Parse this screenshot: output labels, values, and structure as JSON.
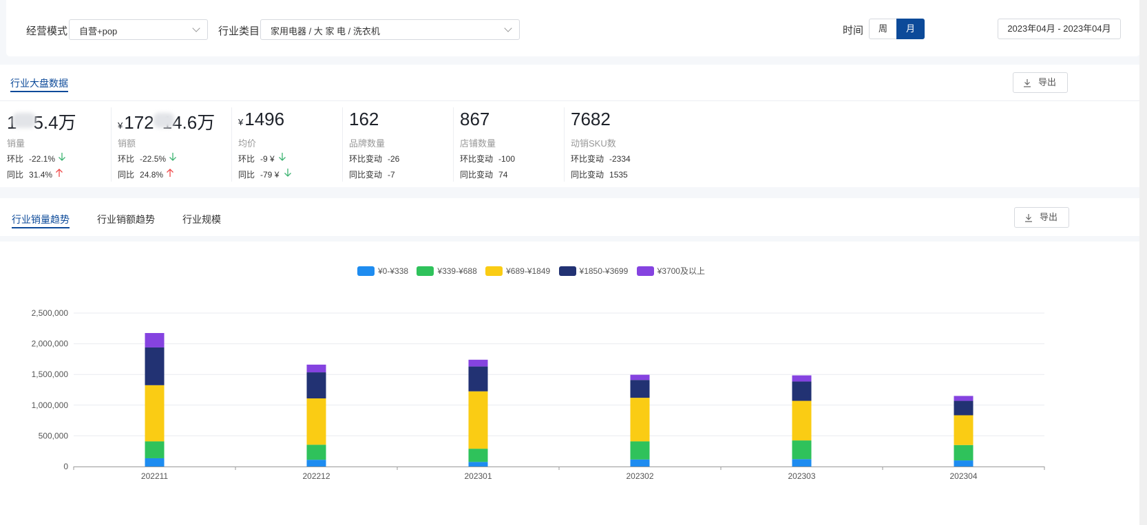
{
  "filters": {
    "mode_label": "经营模式",
    "mode_value": "自营+pop",
    "category_label": "行业类目",
    "category_value": "家用电器 / 大 家 电 / 洗衣机",
    "time_label": "时间",
    "time_options": [
      "周",
      "月"
    ],
    "time_selected": "月",
    "date_range": "2023年04月 - 2023年04月"
  },
  "overview": {
    "tab_label": "行业大盘数据",
    "export_label": "导出",
    "kpis": [
      {
        "value_suffix": "5.4万",
        "name": "销量",
        "rows": [
          {
            "label": "环比",
            "value": "-22.1%",
            "trend": "down"
          },
          {
            "label": "同比",
            "value": "31.4%",
            "trend": "up"
          }
        ]
      },
      {
        "currency": "¥",
        "value_prefix": "172",
        "value_suffix": "14.6万",
        "name": "销额",
        "rows": [
          {
            "label": "环比",
            "value": "-22.5%",
            "trend": "down"
          },
          {
            "label": "同比",
            "value": "24.8%",
            "trend": "up"
          }
        ]
      },
      {
        "currency": "¥",
        "value": "1496",
        "name": "均价",
        "rows": [
          {
            "label": "环比",
            "value": "-9 ¥",
            "trend": "down"
          },
          {
            "label": "同比",
            "value": "-79 ¥",
            "trend": "down"
          }
        ]
      },
      {
        "value": "162",
        "name": "品牌数量",
        "rows": [
          {
            "label": "环比变动",
            "value": "-26"
          },
          {
            "label": "同比变动",
            "value": "-7"
          }
        ]
      },
      {
        "value": "867",
        "name": "店铺数量",
        "rows": [
          {
            "label": "环比变动",
            "value": "-100"
          },
          {
            "label": "同比变动",
            "value": "74"
          }
        ]
      },
      {
        "value": "7682",
        "name": "动销SKU数",
        "rows": [
          {
            "label": "环比变动",
            "value": "-2334"
          },
          {
            "label": "同比变动",
            "value": "1535"
          }
        ]
      }
    ],
    "colors": {
      "down": "#3cb371",
      "up": "#f04848"
    }
  },
  "trend_tabs": {
    "tabs": [
      "行业销量趋势",
      "行业销额趋势",
      "行业规模"
    ],
    "active": "行业销量趋势",
    "export_label": "导出"
  },
  "chart_data": {
    "type": "bar",
    "stacked": true,
    "categories": [
      "202211",
      "202212",
      "202301",
      "202302",
      "202303",
      "202304"
    ],
    "series": [
      {
        "name": "¥0-¥338",
        "color": "#1e8cf0",
        "values": [
          135000,
          110000,
          75000,
          115000,
          120000,
          100000
        ]
      },
      {
        "name": "¥339-¥688",
        "color": "#2fc25b",
        "values": [
          275000,
          245000,
          215000,
          295000,
          305000,
          250000
        ]
      },
      {
        "name": "¥689-¥1849",
        "color": "#facc14",
        "values": [
          915000,
          755000,
          935000,
          710000,
          645000,
          485000
        ]
      },
      {
        "name": "¥1850-¥3699",
        "color": "#223273",
        "values": [
          615000,
          425000,
          405000,
          290000,
          315000,
          235000
        ]
      },
      {
        "name": "¥3700及以上",
        "color": "#8543e0",
        "values": [
          235000,
          125000,
          110000,
          85000,
          100000,
          80000
        ]
      }
    ],
    "ylim": [
      0,
      2500000
    ],
    "yticks": [
      "2,500,000",
      "2,000,000",
      "1,500,000",
      "1,000,000",
      "500,000",
      "0"
    ],
    "grid": true,
    "legend_position": "top-center"
  }
}
